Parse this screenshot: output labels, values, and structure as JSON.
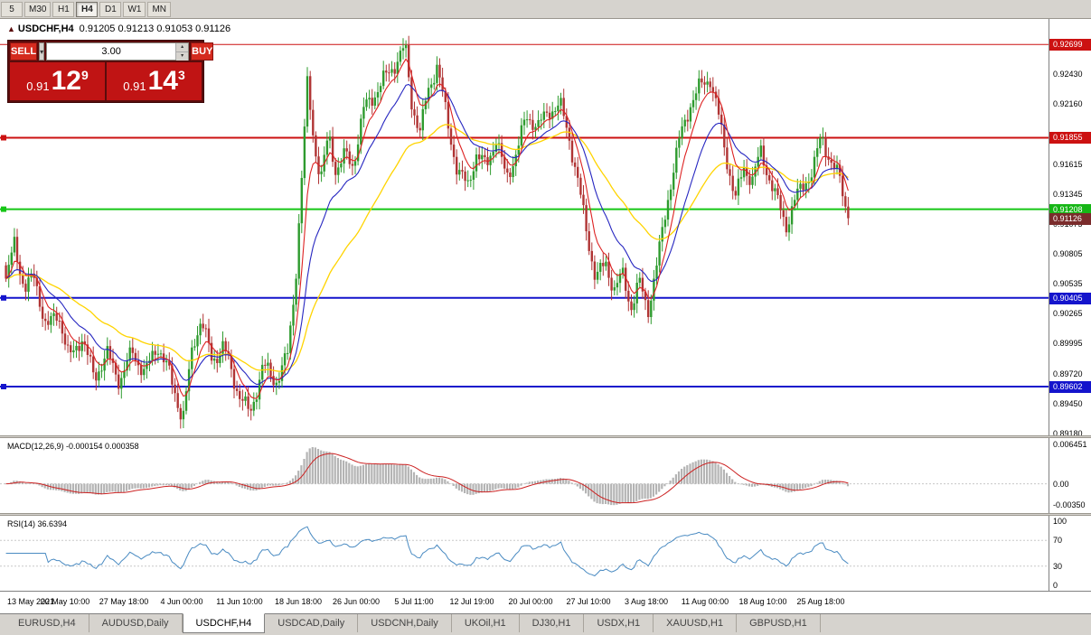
{
  "toolbar": {
    "timeframes": [
      {
        "label": "5",
        "active": false
      },
      {
        "label": "M30",
        "active": false
      },
      {
        "label": "H1",
        "active": false
      },
      {
        "label": "H4",
        "active": true
      },
      {
        "label": "D1",
        "active": false
      },
      {
        "label": "W1",
        "active": false
      },
      {
        "label": "MN",
        "active": false
      }
    ]
  },
  "chart": {
    "marker": "▲",
    "title": "USDCHF,H4",
    "ohlc": "0.91205 0.91213 0.91053 0.91126",
    "trade_panel": {
      "sell_label": "SELL",
      "buy_label": "BUY",
      "volume": "3.00",
      "dropdown_glyph": "▾",
      "spin_up_glyph": "▴",
      "spin_down_glyph": "▾",
      "bid": {
        "prefix": "0.91",
        "big": "12",
        "sup": "9"
      },
      "ask": {
        "prefix": "0.91",
        "big": "14",
        "sup": "3"
      }
    }
  },
  "price_axis": {
    "gridlines": [
      {
        "text": "0.92430",
        "price": 0.9243
      },
      {
        "text": "0.92160",
        "price": 0.9216
      },
      {
        "text": "0.91615",
        "price": 0.91615
      },
      {
        "text": "0.91345",
        "price": 0.91345
      },
      {
        "text": "0.91075",
        "price": 0.91075
      },
      {
        "text": "0.90805",
        "price": 0.90805
      },
      {
        "text": "0.90535",
        "price": 0.90535
      },
      {
        "text": "0.90265",
        "price": 0.90265
      },
      {
        "text": "0.89995",
        "price": 0.89995
      },
      {
        "text": "0.89720",
        "price": 0.8972
      },
      {
        "text": "0.89450",
        "price": 0.8945
      },
      {
        "text": "0.89180",
        "price": 0.8918
      }
    ],
    "boxes": [
      {
        "text": "0.92699",
        "price": 0.92699,
        "bg": "#cc1111"
      },
      {
        "text": "0.91855",
        "price": 0.91855,
        "bg": "#cc1111"
      },
      {
        "text": "0.91208",
        "price": 0.91208,
        "bg": "#16b616"
      },
      {
        "text": "0.91126",
        "price": 0.91126,
        "bg": "#7a2b2b"
      },
      {
        "text": "0.90405",
        "price": 0.90405,
        "bg": "#1414cc"
      },
      {
        "text": "0.89602",
        "price": 0.89602,
        "bg": "#1414cc"
      }
    ]
  },
  "macd_panel": {
    "label": "MACD(12,26,9) -0.000154 0.000358",
    "axis_labels": [
      {
        "text": "0.006451",
        "value": 0.006451
      },
      {
        "text": "0.00",
        "value": 0
      },
      {
        "text": "-0.00350",
        "value": -0.0035
      }
    ]
  },
  "rsi_panel": {
    "label": "RSI(14) 36.6394",
    "axis_labels": [
      {
        "text": "100",
        "value": 100
      },
      {
        "text": "70",
        "value": 70
      },
      {
        "text": "30",
        "value": 30
      },
      {
        "text": "0",
        "value": 0
      }
    ]
  },
  "time_axis": {
    "labels": [
      "13 May 2021",
      "20 May 10:00",
      "27 May 18:00",
      "4 Jun 00:00",
      "11 Jun 10:00",
      "18 Jun 18:00",
      "26 Jun 00:00",
      "5 Jul 11:00",
      "12 Jul 19:00",
      "20 Jul 00:00",
      "27 Jul 10:00",
      "3 Aug 18:00",
      "11 Aug 00:00",
      "18 Aug 10:00",
      "25 Aug 18:00"
    ]
  },
  "tabs": [
    {
      "label": "EURUSD,H4",
      "active": false
    },
    {
      "label": "AUDUSD,Daily",
      "active": false
    },
    {
      "label": "USDCHF,H4",
      "active": true
    },
    {
      "label": "USDCAD,Daily",
      "active": false
    },
    {
      "label": "USDCNH,Daily",
      "active": false
    },
    {
      "label": "UKOil,H1",
      "active": false
    },
    {
      "label": "DJ30,H1",
      "active": false
    },
    {
      "label": "USDX,H1",
      "active": false
    },
    {
      "label": "XAUUSD,H1",
      "active": false
    },
    {
      "label": "GBPUSD,H1",
      "active": false
    }
  ],
  "chart_data": {
    "type": "candlestick",
    "symbol": "USDCHF",
    "timeframe": "H4",
    "title": "USDCHF,H4",
    "ylim": [
      0.8916,
      0.9293
    ],
    "bars": 300,
    "last_price": 0.91126,
    "colors": {
      "up": "#2e9b2e",
      "down": "#b03434",
      "ma_fast": "#dd2222",
      "ma_mid": "#2626c0",
      "ma_slow": "#ffd400",
      "macd_hist": "#b4b4b4",
      "macd_signal": "#cc2222",
      "rsi_line": "#4a8bc2"
    },
    "price_path": [
      [
        0.0,
        0.9055
      ],
      [
        0.01,
        0.909
      ],
      [
        0.022,
        0.9048
      ],
      [
        0.034,
        0.906
      ],
      [
        0.048,
        0.9012
      ],
      [
        0.062,
        0.9028
      ],
      [
        0.075,
        0.8985
      ],
      [
        0.09,
        0.9005
      ],
      [
        0.105,
        0.8968
      ],
      [
        0.12,
        0.899
      ],
      [
        0.135,
        0.8965
      ],
      [
        0.15,
        0.8992
      ],
      [
        0.165,
        0.8972
      ],
      [
        0.18,
        0.8998
      ],
      [
        0.195,
        0.897
      ],
      [
        0.21,
        0.893
      ],
      [
        0.222,
        0.8998
      ],
      [
        0.232,
        0.9022
      ],
      [
        0.245,
        0.8982
      ],
      [
        0.258,
        0.8998
      ],
      [
        0.272,
        0.8962
      ],
      [
        0.29,
        0.8934
      ],
      [
        0.305,
        0.898
      ],
      [
        0.32,
        0.8964
      ],
      [
        0.335,
        0.899
      ],
      [
        0.344,
        0.906
      ],
      [
        0.352,
        0.916
      ],
      [
        0.358,
        0.9235
      ],
      [
        0.366,
        0.918
      ],
      [
        0.374,
        0.9148
      ],
      [
        0.383,
        0.9188
      ],
      [
        0.392,
        0.9155
      ],
      [
        0.402,
        0.917
      ],
      [
        0.412,
        0.916
      ],
      [
        0.425,
        0.9212
      ],
      [
        0.438,
        0.9225
      ],
      [
        0.45,
        0.924
      ],
      [
        0.46,
        0.925
      ],
      [
        0.474,
        0.9268
      ],
      [
        0.482,
        0.9215
      ],
      [
        0.492,
        0.919
      ],
      [
        0.5,
        0.9225
      ],
      [
        0.512,
        0.9252
      ],
      [
        0.524,
        0.92
      ],
      [
        0.536,
        0.9155
      ],
      [
        0.548,
        0.9142
      ],
      [
        0.558,
        0.917
      ],
      [
        0.57,
        0.916
      ],
      [
        0.582,
        0.9185
      ],
      [
        0.594,
        0.9148
      ],
      [
        0.606,
        0.9172
      ],
      [
        0.618,
        0.9205
      ],
      [
        0.632,
        0.9196
      ],
      [
        0.645,
        0.921
      ],
      [
        0.658,
        0.9215
      ],
      [
        0.668,
        0.9188
      ],
      [
        0.678,
        0.915
      ],
      [
        0.69,
        0.9098
      ],
      [
        0.7,
        0.9058
      ],
      [
        0.712,
        0.9072
      ],
      [
        0.722,
        0.9048
      ],
      [
        0.732,
        0.9062
      ],
      [
        0.742,
        0.9032
      ],
      [
        0.752,
        0.9055
      ],
      [
        0.762,
        0.9028
      ],
      [
        0.775,
        0.908
      ],
      [
        0.788,
        0.914
      ],
      [
        0.8,
        0.9185
      ],
      [
        0.812,
        0.9215
      ],
      [
        0.824,
        0.9232
      ],
      [
        0.836,
        0.924
      ],
      [
        0.846,
        0.9205
      ],
      [
        0.856,
        0.9165
      ],
      [
        0.866,
        0.913
      ],
      [
        0.876,
        0.9158
      ],
      [
        0.886,
        0.9148
      ],
      [
        0.896,
        0.9172
      ],
      [
        0.906,
        0.915
      ],
      [
        0.916,
        0.9128
      ],
      [
        0.926,
        0.9105
      ],
      [
        0.936,
        0.9128
      ],
      [
        0.948,
        0.9145
      ],
      [
        0.958,
        0.9155
      ],
      [
        0.968,
        0.9188
      ],
      [
        0.98,
        0.9162
      ],
      [
        0.99,
        0.9148
      ],
      [
        1.0,
        0.9113
      ]
    ],
    "hlines": [
      {
        "price": 0.92699,
        "color": "#cc1111",
        "width": 1,
        "marker": false
      },
      {
        "price": 0.91855,
        "color": "#cc1111",
        "width": 2,
        "marker": true
      },
      {
        "price": 0.91208,
        "color": "#16c616",
        "width": 2,
        "marker": true
      },
      {
        "price": 0.90405,
        "color": "#1414cc",
        "width": 2,
        "marker": true
      },
      {
        "price": 0.89602,
        "color": "#1414cc",
        "width": 2,
        "marker": true
      }
    ],
    "overlays": [
      {
        "name": "MA fast",
        "period": 7,
        "color": "#dd2222"
      },
      {
        "name": "MA mid",
        "period": 18,
        "color": "#2626c0"
      },
      {
        "name": "MA slow",
        "period": 45,
        "color": "#ffd400"
      }
    ],
    "indicators": [
      {
        "name": "MACD",
        "params": "12,26,9",
        "current_values": [
          -0.000154,
          0.000358
        ],
        "ylim": [
          -0.0048,
          0.0075
        ]
      },
      {
        "name": "RSI",
        "params": "14",
        "current_value": 36.6394,
        "ylim": [
          -8,
          108
        ],
        "levels": [
          70,
          30
        ]
      }
    ]
  }
}
